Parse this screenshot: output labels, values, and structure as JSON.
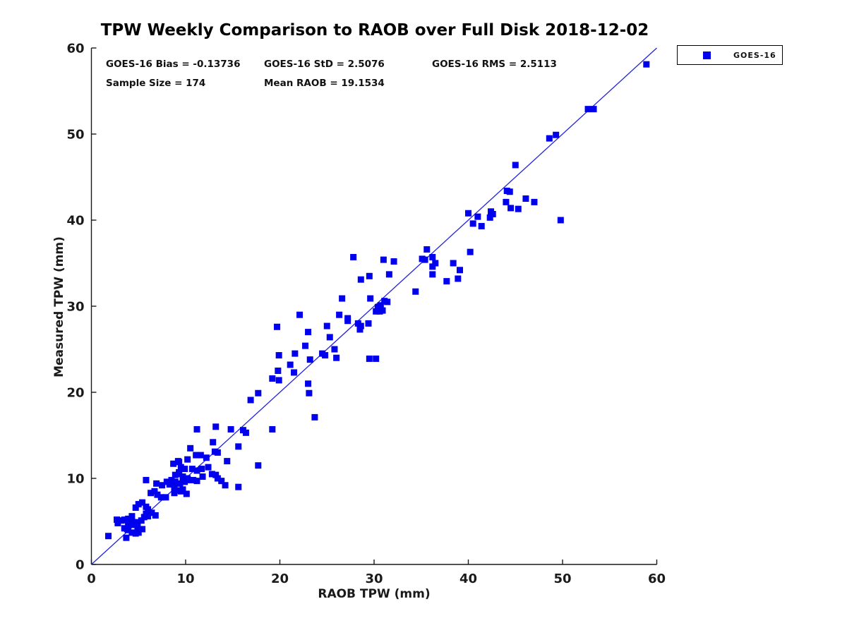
{
  "title": "TPW Weekly Comparison to RAOB over Full Disk 2018-12-02",
  "stats": {
    "bias": "GOES-16 Bias = -0.13736",
    "std": "GOES-16 StD = 2.5076",
    "rms": "GOES-16 RMS = 2.5113",
    "sample_size": "Sample Size = 174",
    "mean_raob": "Mean RAOB = 19.1534"
  },
  "legend": {
    "items": [
      {
        "label": "GOES-16",
        "marker": "square",
        "marker_color": "#0000ee"
      }
    ]
  },
  "colors": {
    "marker": "#0000ee",
    "reference_line": "#2222dd",
    "axis": "#1a1a1a",
    "background": "#ffffff"
  },
  "chart_data": {
    "type": "scatter",
    "title": "TPW Weekly Comparison to RAOB over Full Disk 2018-12-02",
    "xlabel": "RAOB TPW (mm)",
    "ylabel": "Measured TPW (mm)",
    "xlim": [
      0,
      60
    ],
    "ylim": [
      0,
      60
    ],
    "xticks": [
      0,
      10,
      20,
      30,
      40,
      50,
      60
    ],
    "yticks": [
      0,
      10,
      20,
      30,
      40,
      50,
      60
    ],
    "grid": false,
    "legend_position": "outside-top-right",
    "stats_values": {
      "bias": -0.13736,
      "std": 2.5076,
      "rms": 2.5113,
      "sample_size": 174,
      "mean_raob": 19.1534
    },
    "reference_line": {
      "type": "identity",
      "from": [
        0,
        0
      ],
      "to": [
        60,
        60
      ]
    },
    "series": [
      {
        "name": "GOES-16",
        "marker": "square",
        "color": "#0000ee",
        "points": [
          [
            1.8,
            3.3
          ],
          [
            2.7,
            5.2
          ],
          [
            2.8,
            4.8
          ],
          [
            3.2,
            5.1
          ],
          [
            3.5,
            5.2
          ],
          [
            3.7,
            3.1
          ],
          [
            3.8,
            4.1
          ],
          [
            3.9,
            5.3
          ],
          [
            4.3,
            5.6
          ],
          [
            3.9,
            4.8
          ],
          [
            4.3,
            4.6
          ],
          [
            4.7,
            4.9
          ],
          [
            4.9,
            4.6
          ],
          [
            3.5,
            4.2
          ],
          [
            3.9,
            4.0
          ],
          [
            4.3,
            3.7
          ],
          [
            4.7,
            3.6
          ],
          [
            4.9,
            4.0
          ],
          [
            4.0,
            4.7
          ],
          [
            4.5,
            4.9
          ],
          [
            5.0,
            3.7
          ],
          [
            5.3,
            5.1
          ],
          [
            5.4,
            4.1
          ],
          [
            5.6,
            5.5
          ],
          [
            5.8,
            5.9
          ],
          [
            6.0,
            5.6
          ],
          [
            4.7,
            6.6
          ],
          [
            5.0,
            7.0
          ],
          [
            5.4,
            7.2
          ],
          [
            5.8,
            6.7
          ],
          [
            6.0,
            6.4
          ],
          [
            6.4,
            6.0
          ],
          [
            6.8,
            5.7
          ],
          [
            5.8,
            9.8
          ],
          [
            6.3,
            8.3
          ],
          [
            6.7,
            8.5
          ],
          [
            6.9,
            9.4
          ],
          [
            7.0,
            8.1
          ],
          [
            7.4,
            7.8
          ],
          [
            7.5,
            9.2
          ],
          [
            7.9,
            7.8
          ],
          [
            8.0,
            9.6
          ],
          [
            8.8,
            8.9
          ],
          [
            9.2,
            8.6
          ],
          [
            9.5,
            8.5
          ],
          [
            8.3,
            9.3
          ],
          [
            8.5,
            9.8
          ],
          [
            8.9,
            9.6
          ],
          [
            9.4,
            9.4
          ],
          [
            9.9,
            9.6
          ],
          [
            10.3,
            9.8
          ],
          [
            8.8,
            8.3
          ],
          [
            9.7,
            8.7
          ],
          [
            10.1,
            8.2
          ],
          [
            8.7,
            11.7
          ],
          [
            9.2,
            12.0
          ],
          [
            10.2,
            12.2
          ],
          [
            9.5,
            11.3
          ],
          [
            9.9,
            11.1
          ],
          [
            10.7,
            11.1
          ],
          [
            11.2,
            10.9
          ],
          [
            11.7,
            11.1
          ],
          [
            12.4,
            11.3
          ],
          [
            12.8,
            10.5
          ],
          [
            13.2,
            10.4
          ],
          [
            8.9,
            10.4
          ],
          [
            9.3,
            10.5
          ],
          [
            9.7,
            10.2
          ],
          [
            11.8,
            10.2
          ],
          [
            13.4,
            10.0
          ],
          [
            13.8,
            9.7
          ],
          [
            14.2,
            9.2
          ],
          [
            15.6,
            9.0
          ],
          [
            9.3,
            11.9
          ],
          [
            9.3,
            10.7
          ],
          [
            9.7,
            10.0
          ],
          [
            10.2,
            10.0
          ],
          [
            10.8,
            9.8
          ],
          [
            11.2,
            9.7
          ],
          [
            11.2,
            15.7
          ],
          [
            13.2,
            16.0
          ],
          [
            13.1,
            13.1
          ],
          [
            13.4,
            13.0
          ],
          [
            12.2,
            12.4
          ],
          [
            14.4,
            12.0
          ],
          [
            14.8,
            15.7
          ],
          [
            16.1,
            15.6
          ],
          [
            16.4,
            15.3
          ],
          [
            15.6,
            13.7
          ],
          [
            17.7,
            11.5
          ],
          [
            19.2,
            15.7
          ],
          [
            10.5,
            13.5
          ],
          [
            11.1,
            12.7
          ],
          [
            11.6,
            12.7
          ],
          [
            12.9,
            14.2
          ],
          [
            16.9,
            19.1
          ],
          [
            17.7,
            19.9
          ],
          [
            19.8,
            22.5
          ],
          [
            19.2,
            21.6
          ],
          [
            19.9,
            21.4
          ],
          [
            21.1,
            23.2
          ],
          [
            21.5,
            22.3
          ],
          [
            21.6,
            24.5
          ],
          [
            19.9,
            24.3
          ],
          [
            23.0,
            21.0
          ],
          [
            23.1,
            19.9
          ],
          [
            23.7,
            17.1
          ],
          [
            19.7,
            27.6
          ],
          [
            22.1,
            29.0
          ],
          [
            23.0,
            27.0
          ],
          [
            22.7,
            25.4
          ],
          [
            25.0,
            27.7
          ],
          [
            25.3,
            26.4
          ],
          [
            25.8,
            25.0
          ],
          [
            24.5,
            24.5
          ],
          [
            24.8,
            24.3
          ],
          [
            26.0,
            24.0
          ],
          [
            23.2,
            23.8
          ],
          [
            26.6,
            30.9
          ],
          [
            29.6,
            30.9
          ],
          [
            30.4,
            29.9
          ],
          [
            30.7,
            30.1
          ],
          [
            26.3,
            29.0
          ],
          [
            27.2,
            28.6
          ],
          [
            27.2,
            28.3
          ],
          [
            28.3,
            28.0
          ],
          [
            28.6,
            27.7
          ],
          [
            29.4,
            28.0
          ],
          [
            28.5,
            27.3
          ],
          [
            29.5,
            23.9
          ],
          [
            30.2,
            23.9
          ],
          [
            31.1,
            30.6
          ],
          [
            31.4,
            30.5
          ],
          [
            30.5,
            29.9
          ],
          [
            30.6,
            29.4
          ],
          [
            30.9,
            29.5
          ],
          [
            30.2,
            29.4
          ],
          [
            27.8,
            35.7
          ],
          [
            31.0,
            35.4
          ],
          [
            32.1,
            35.2
          ],
          [
            28.6,
            33.1
          ],
          [
            29.5,
            33.5
          ],
          [
            31.6,
            33.7
          ],
          [
            34.4,
            31.7
          ],
          [
            35.6,
            36.6
          ],
          [
            35.1,
            35.5
          ],
          [
            35.4,
            35.4
          ],
          [
            36.2,
            35.7
          ],
          [
            36.5,
            35.0
          ],
          [
            36.2,
            34.6
          ],
          [
            36.2,
            33.7
          ],
          [
            37.7,
            32.9
          ],
          [
            38.4,
            35.0
          ],
          [
            39.1,
            34.2
          ],
          [
            38.9,
            33.2
          ],
          [
            40.2,
            36.3
          ],
          [
            40.0,
            40.8
          ],
          [
            41.0,
            40.4
          ],
          [
            42.4,
            41.0
          ],
          [
            42.6,
            40.7
          ],
          [
            42.3,
            40.3
          ],
          [
            40.5,
            39.6
          ],
          [
            41.4,
            39.3
          ],
          [
            44.1,
            43.4
          ],
          [
            44.4,
            43.3
          ],
          [
            44.0,
            42.1
          ],
          [
            46.1,
            42.5
          ],
          [
            47.0,
            42.1
          ],
          [
            44.5,
            41.4
          ],
          [
            45.3,
            41.3
          ],
          [
            45.0,
            46.4
          ],
          [
            48.6,
            49.5
          ],
          [
            49.3,
            49.9
          ],
          [
            52.7,
            52.9
          ],
          [
            53.3,
            52.9
          ],
          [
            58.9,
            58.1
          ],
          [
            49.8,
            40.0
          ]
        ]
      }
    ]
  }
}
